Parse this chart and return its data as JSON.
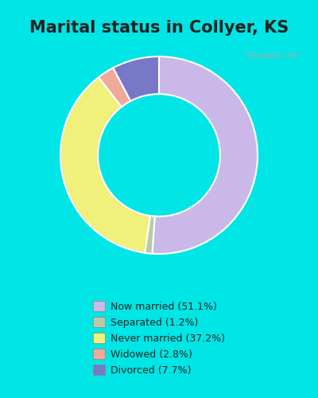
{
  "title": "Marital status in Collyer, KS",
  "title_fontsize": 15,
  "title_fontweight": "bold",
  "slices": [
    51.1,
    1.2,
    37.2,
    2.8,
    7.7
  ],
  "colors": [
    "#c9b8e8",
    "#b8c9a8",
    "#f0f07a",
    "#f0a898",
    "#7878c8"
  ],
  "labels": [
    "Now married (51.1%)",
    "Separated (1.2%)",
    "Never married (37.2%)",
    "Widowed (2.8%)",
    "Divorced (7.7%)"
  ],
  "legend_colors": [
    "#c9b8e8",
    "#b8c9a8",
    "#f0f07a",
    "#f0a898",
    "#7878c8"
  ],
  "bg_outer": "#00e5e5",
  "bg_inner": "#d8ede0",
  "watermark": "City-Data.com",
  "startangle": 90,
  "donut_width": 0.38
}
